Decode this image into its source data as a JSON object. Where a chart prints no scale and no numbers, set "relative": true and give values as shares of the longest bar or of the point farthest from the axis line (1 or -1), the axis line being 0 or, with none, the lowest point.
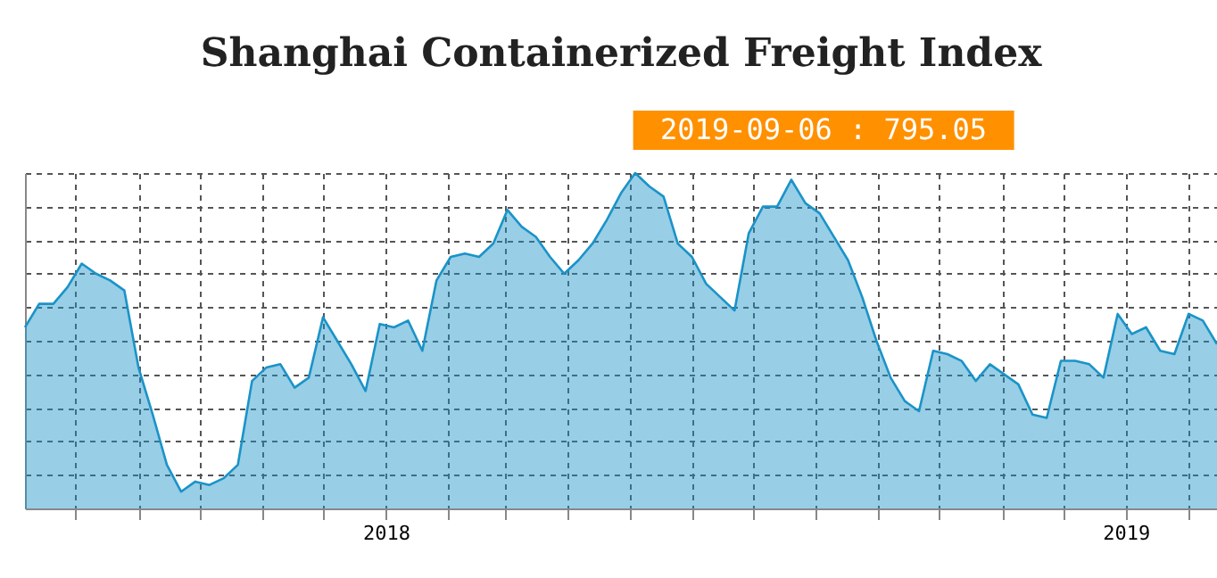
{
  "chart_data": {
    "type": "area",
    "title": "Shanghai Containerized Freight Index",
    "relative": true,
    "annotations": [
      "2019-09-06 : 795.05"
    ],
    "x": [
      "2017-07-07",
      "2017-07-14",
      "2017-07-21",
      "2017-07-28",
      "2017-08-04",
      "2017-08-11",
      "2017-08-18",
      "2017-08-25",
      "2017-09-01",
      "2017-09-08",
      "2017-09-15",
      "2017-09-22",
      "2017-09-29",
      "2017-10-06",
      "2017-10-13",
      "2017-10-20",
      "2017-10-27",
      "2017-11-03",
      "2017-11-10",
      "2017-11-17",
      "2017-11-24",
      "2017-12-01",
      "2017-12-08",
      "2017-12-15",
      "2017-12-22",
      "2017-12-29",
      "2018-01-05",
      "2018-01-12",
      "2018-01-19",
      "2018-01-26",
      "2018-02-02",
      "2018-02-09",
      "2018-02-16",
      "2018-02-23",
      "2018-03-02",
      "2018-03-09",
      "2018-03-16",
      "2018-03-23",
      "2018-03-30",
      "2018-04-06",
      "2018-04-13",
      "2018-04-20",
      "2018-04-27",
      "2018-05-04",
      "2018-05-11",
      "2018-05-18",
      "2018-05-25",
      "2018-06-01",
      "2018-06-08",
      "2018-06-15",
      "2018-06-22",
      "2018-06-29",
      "2018-07-06",
      "2018-07-13",
      "2018-07-20",
      "2018-07-27",
      "2018-08-03",
      "2018-08-10",
      "2018-08-17",
      "2018-08-24",
      "2018-08-31",
      "2018-09-07",
      "2018-09-14",
      "2018-09-21",
      "2018-09-28",
      "2018-10-05",
      "2018-10-12",
      "2018-10-19",
      "2018-10-26",
      "2018-11-02",
      "2018-11-09",
      "2018-11-16",
      "2018-11-23",
      "2018-11-30",
      "2018-12-07",
      "2018-12-14",
      "2018-12-21",
      "2018-12-28",
      "2019-01-04",
      "2019-01-11",
      "2019-01-18",
      "2019-01-25",
      "2019-02-01",
      "2019-02-08",
      "2019-02-15"
    ],
    "series": [
      {
        "color": "#1a93c8",
        "values": [
          0.54,
          0.61,
          0.61,
          0.66,
          0.73,
          0.7,
          0.68,
          0.65,
          0.42,
          0.28,
          0.13,
          0.05,
          0.08,
          0.07,
          0.09,
          0.13,
          0.38,
          0.42,
          0.43,
          0.36,
          0.39,
          0.57,
          0.5,
          0.43,
          0.35,
          0.55,
          0.54,
          0.56,
          0.47,
          0.68,
          0.75,
          0.76,
          0.75,
          0.79,
          0.89,
          0.84,
          0.81,
          0.75,
          0.7,
          0.74,
          0.79,
          0.86,
          0.94,
          1.0,
          0.96,
          0.93,
          0.79,
          0.75,
          0.67,
          0.63,
          0.59,
          0.82,
          0.9,
          0.9,
          0.98,
          0.91,
          0.88,
          0.81,
          0.74,
          0.63,
          0.5,
          0.39,
          0.32,
          0.29,
          0.47,
          0.46,
          0.44,
          0.38,
          0.43,
          0.4,
          0.37,
          0.28,
          0.27,
          0.44,
          0.44,
          0.43,
          0.39,
          0.58,
          0.52,
          0.54,
          0.47,
          0.46,
          0.58,
          0.56,
          0.49
        ]
      }
    ],
    "xlim": [
      "2017-07-07",
      "2019-02-15"
    ],
    "xticks": [
      {
        "value": "2017-08",
        "label": null
      },
      {
        "value": "2017-09",
        "label": null
      },
      {
        "value": "2017-10",
        "label": null
      },
      {
        "value": "2017-11",
        "label": null
      },
      {
        "value": "2017-12",
        "label": null
      },
      "2018",
      {
        "value": "2018-02",
        "label": null
      },
      {
        "value": "2018-03",
        "label": null
      },
      {
        "value": "2018-04",
        "label": null
      },
      {
        "value": "2018-05",
        "label": null
      },
      {
        "value": "2018-06",
        "label": null
      },
      {
        "value": "2018-07",
        "label": null
      },
      {
        "value": "2018-08",
        "label": null
      },
      {
        "value": "2018-09",
        "label": null
      },
      {
        "value": "2018-10",
        "label": null
      },
      {
        "value": "2018-11",
        "label": null
      },
      {
        "value": "2018-12",
        "label": null
      },
      "2019",
      {
        "value": "2019-02",
        "label": null
      }
    ],
    "grid": true
  }
}
